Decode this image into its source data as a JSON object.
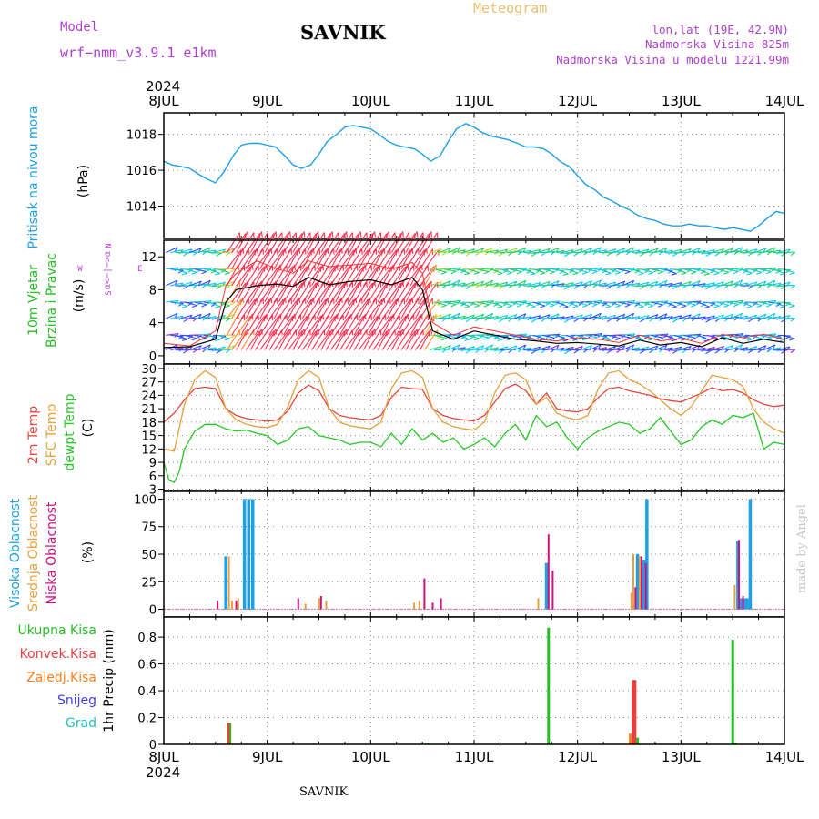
{
  "header": {
    "model_label": "Model",
    "model_name": "wrf−nmm_v3.9.1  e1km",
    "station": "SAVNIK",
    "product": "Meteogram",
    "lonlat": "lon,lat (19E, 42.9N)",
    "elevation": "Nadmorska Visina 825m",
    "model_elevation": "Nadmorska Visina u modelu 1221.99m",
    "year_top": "2024",
    "year_bottom": "2024",
    "footer_station": "SAVNIK",
    "credit": "made by Angel"
  },
  "colors": {
    "pressure": "#1ea0e6",
    "temp2m": "#e6453c",
    "sfc": "#e6a03c",
    "dewpt": "#28c828",
    "wind_black": "#000000",
    "wind_red": "#ff3232",
    "wind_label": "#22c022",
    "compass": "#c040e0",
    "high_cloud": "#1ea0e6",
    "mid_cloud": "#e6a03c",
    "low_cloud": "#d01080",
    "total_precip": "#22c022",
    "conv_precip": "#e64040",
    "frozen_precip": "#ff8020",
    "snow": "#4040e0",
    "hail": "#20c0c0",
    "header_purple": "#b040d0",
    "header_gold": "#e6c070"
  },
  "compass": {
    "n": "N",
    "e": "E",
    "w": "W",
    "s": "S",
    "glyph": "α<−|−>α"
  },
  "chart_data": [
    {
      "type": "line",
      "panel": "pressure",
      "ylabel_lines": [
        "Pritisak na nivou mora",
        "(hPa)"
      ],
      "xticks": [
        "8JUL",
        "9JUL",
        "10JUL",
        "11JUL",
        "12JUL",
        "13JUL",
        "14JUL"
      ],
      "yticks": [
        1014,
        1016,
        1018
      ],
      "ylim": [
        1012.2,
        1019.2
      ],
      "grid": true,
      "series": [
        {
          "color_key": "pressure",
          "x": [
            0,
            0.08,
            0.17,
            0.25,
            0.33,
            0.42,
            0.5,
            0.58,
            0.67,
            0.75,
            0.83,
            0.92,
            1.0,
            1.08,
            1.17,
            1.25,
            1.33,
            1.42,
            1.5,
            1.58,
            1.67,
            1.75,
            1.83,
            1.92,
            2.0,
            2.08,
            2.17,
            2.25,
            2.33,
            2.42,
            2.5,
            2.58,
            2.67,
            2.75,
            2.83,
            2.92,
            3.0,
            3.08,
            3.17,
            3.25,
            3.33,
            3.42,
            3.5,
            3.58,
            3.67,
            3.75,
            3.83,
            3.92,
            4.0,
            4.08,
            4.17,
            4.25,
            4.33,
            4.42,
            4.5,
            4.58,
            4.67,
            4.75,
            4.83,
            4.92,
            5.0,
            5.08,
            5.17,
            5.25,
            5.33,
            5.42,
            5.5,
            5.58,
            5.67,
            5.75,
            5.83,
            5.92,
            6.0
          ],
          "y": [
            1016.5,
            1016.3,
            1016.2,
            1016.1,
            1015.8,
            1015.5,
            1015.3,
            1015.9,
            1016.8,
            1017.4,
            1017.5,
            1017.5,
            1017.4,
            1017.3,
            1016.8,
            1016.3,
            1016.1,
            1016.3,
            1016.9,
            1017.6,
            1018.0,
            1018.4,
            1018.5,
            1018.4,
            1018.3,
            1018.0,
            1017.6,
            1017.4,
            1017.3,
            1017.2,
            1016.9,
            1016.5,
            1016.8,
            1017.6,
            1018.3,
            1018.6,
            1018.4,
            1018.1,
            1017.9,
            1017.8,
            1017.7,
            1017.5,
            1017.3,
            1017.3,
            1017.2,
            1016.9,
            1016.5,
            1016.2,
            1015.7,
            1015.2,
            1014.9,
            1014.5,
            1014.3,
            1014.0,
            1013.8,
            1013.5,
            1013.3,
            1013.2,
            1013.0,
            1012.9,
            1012.9,
            1013.0,
            1012.9,
            1012.9,
            1012.8,
            1012.7,
            1012.8,
            1012.7,
            1012.6,
            1012.9,
            1013.3,
            1013.7,
            1013.6
          ]
        }
      ]
    },
    {
      "type": "line",
      "panel": "wind",
      "ylabel_lines": [
        "10m Vjetar",
        "Brzina i Pravac",
        "(m/s)"
      ],
      "yticks": [
        0,
        4,
        8,
        12
      ],
      "ylim": [
        -1,
        14
      ],
      "grid": false,
      "series": [
        {
          "name": "",
          "color_key": "wind_black",
          "x": [
            0,
            0.25,
            0.5,
            0.6,
            0.7,
            0.9,
            1.1,
            1.25,
            1.4,
            1.6,
            1.8,
            2.0,
            2.2,
            2.4,
            2.5,
            2.6,
            2.8,
            3.0,
            3.2,
            3.4,
            3.6,
            3.8,
            4.0,
            4.2,
            4.4,
            4.6,
            4.8,
            5.0,
            5.2,
            5.4,
            5.6,
            5.8,
            6.0
          ],
          "y": [
            1.0,
            1.1,
            2.0,
            6.5,
            8.0,
            8.5,
            8.7,
            8.4,
            9.5,
            8.6,
            9.0,
            9.2,
            8.6,
            9.5,
            8.0,
            3.0,
            2.0,
            3.0,
            2.5,
            2.0,
            1.8,
            1.5,
            1.6,
            1.4,
            1.2,
            1.9,
            1.3,
            1.6,
            1.1,
            2.2,
            1.5,
            2.0,
            1.6
          ]
        },
        {
          "name": "",
          "color_key": "wind_red",
          "x": [
            0,
            0.25,
            0.5,
            0.6,
            0.7,
            0.9,
            1.1,
            1.25,
            1.4,
            1.6,
            1.8,
            2.0,
            2.2,
            2.4,
            2.5,
            2.6,
            2.8,
            3.0,
            3.2,
            3.4,
            3.6,
            3.8,
            4.0,
            4.2,
            4.4,
            4.6,
            4.8,
            5.0,
            5.2,
            5.4,
            5.6,
            5.8,
            6.0
          ],
          "y": [
            1.5,
            1.2,
            3.0,
            8.5,
            10.0,
            11.5,
            10.5,
            10.0,
            11.5,
            10.8,
            11.0,
            11.2,
            10.5,
            11.3,
            10.0,
            4.0,
            2.5,
            3.5,
            3.0,
            2.5,
            2.0,
            1.8,
            2.2,
            2.0,
            1.6,
            2.5,
            1.8,
            2.1,
            1.5,
            2.6,
            2.2,
            2.6,
            2.0
          ]
        }
      ]
    },
    {
      "type": "line",
      "panel": "temperature",
      "ylabel_lines": [
        "2m Temp",
        "SFC Temp",
        "dewpt Temp",
        "(C)"
      ],
      "yticks": [
        3,
        6,
        9,
        12,
        15,
        18,
        21,
        24,
        27,
        30
      ],
      "ylim": [
        2.5,
        31
      ],
      "grid": true,
      "series": [
        {
          "color_key": "temp2m",
          "x": [
            0,
            0.1,
            0.2,
            0.3,
            0.4,
            0.5,
            0.6,
            0.7,
            0.8,
            0.9,
            1.0,
            1.1,
            1.2,
            1.3,
            1.4,
            1.5,
            1.6,
            1.7,
            1.8,
            1.9,
            2.0,
            2.1,
            2.2,
            2.3,
            2.4,
            2.5,
            2.6,
            2.7,
            2.8,
            2.9,
            3.0,
            3.1,
            3.2,
            3.3,
            3.4,
            3.5,
            3.6,
            3.7,
            3.8,
            3.9,
            4.0,
            4.1,
            4.2,
            4.3,
            4.4,
            4.5,
            4.6,
            4.7,
            4.8,
            4.9,
            5.0,
            5.1,
            5.2,
            5.3,
            5.4,
            5.5,
            5.6,
            5.7,
            5.8,
            5.9,
            6.0
          ],
          "y": [
            18,
            20,
            23,
            25.5,
            25.8,
            25.5,
            21,
            19.5,
            18.8,
            18.5,
            18.2,
            18.5,
            20.5,
            24.5,
            26.3,
            25.0,
            21,
            19.5,
            19.0,
            18.7,
            18.5,
            19.5,
            23.5,
            25.8,
            25.5,
            25.3,
            21,
            19.5,
            18.8,
            18.5,
            18.3,
            19.5,
            22.5,
            25.5,
            26.5,
            25.0,
            22.0,
            24.5,
            21,
            20.5,
            20.3,
            21.0,
            23.5,
            25.5,
            25.8,
            25.0,
            24.5,
            24.0,
            23.2,
            22.8,
            22.5,
            23.5,
            24.5,
            25.7,
            25.0,
            25.3,
            24.5,
            23.0,
            22.0,
            21.5,
            21.8
          ]
        },
        {
          "color_key": "sfc",
          "x": [
            0,
            0.1,
            0.2,
            0.3,
            0.4,
            0.5,
            0.6,
            0.7,
            0.8,
            0.9,
            1.0,
            1.1,
            1.2,
            1.3,
            1.4,
            1.5,
            1.6,
            1.7,
            1.8,
            1.9,
            2.0,
            2.1,
            2.2,
            2.3,
            2.4,
            2.5,
            2.6,
            2.7,
            2.8,
            2.9,
            3.0,
            3.1,
            3.2,
            3.3,
            3.4,
            3.5,
            3.6,
            3.7,
            3.8,
            3.9,
            4.0,
            4.1,
            4.2,
            4.3,
            4.4,
            4.5,
            4.6,
            4.7,
            4.8,
            4.9,
            5.0,
            5.1,
            5.2,
            5.3,
            5.4,
            5.5,
            5.6,
            5.7,
            5.8,
            5.9,
            6.0
          ],
          "y": [
            12,
            11.5,
            22,
            27.5,
            29.5,
            28,
            21,
            18.5,
            17.5,
            17.0,
            16.8,
            17.5,
            21.5,
            27.5,
            29.5,
            28.0,
            21,
            18.0,
            17.2,
            16.8,
            16.5,
            18.0,
            25.5,
            29.0,
            29.5,
            28.0,
            21,
            18.0,
            17.0,
            16.5,
            16.2,
            18.0,
            24.5,
            28.5,
            29.0,
            27.5,
            22.0,
            23.5,
            20,
            19.0,
            18.5,
            19.5,
            25.5,
            29.0,
            29.5,
            27.5,
            26.5,
            25.0,
            23.0,
            21.0,
            19.5,
            21.5,
            25.0,
            28.5,
            28.0,
            27.5,
            26.0,
            21.0,
            18.0,
            16.5,
            15.5
          ]
        },
        {
          "color_key": "dewpt",
          "x": [
            0,
            0.05,
            0.1,
            0.15,
            0.2,
            0.3,
            0.4,
            0.5,
            0.6,
            0.7,
            0.8,
            0.9,
            1.0,
            1.1,
            1.2,
            1.3,
            1.4,
            1.5,
            1.6,
            1.7,
            1.8,
            1.9,
            2.0,
            2.1,
            2.2,
            2.3,
            2.4,
            2.5,
            2.6,
            2.7,
            2.8,
            2.9,
            3.0,
            3.1,
            3.2,
            3.3,
            3.4,
            3.5,
            3.6,
            3.7,
            3.8,
            3.9,
            4.0,
            4.1,
            4.2,
            4.3,
            4.4,
            4.5,
            4.6,
            4.7,
            4.8,
            4.9,
            5.0,
            5.1,
            5.2,
            5.3,
            5.4,
            5.5,
            5.6,
            5.7,
            5.8,
            5.9,
            6.0
          ],
          "y": [
            9,
            5,
            4.5,
            7,
            12,
            16,
            17.5,
            17.5,
            16.5,
            16.0,
            16.2,
            15.5,
            15.0,
            13.0,
            14.0,
            16.5,
            17.0,
            15.0,
            14.5,
            14.0,
            13.0,
            13.5,
            13.5,
            12.5,
            15.5,
            13.0,
            16.5,
            14.0,
            15.5,
            13.5,
            14.5,
            12.0,
            13.0,
            14.5,
            12.5,
            15.5,
            17.5,
            14.0,
            19.5,
            17.0,
            18.0,
            14.5,
            12.0,
            14.5,
            16.0,
            17.0,
            18.0,
            17.5,
            15.5,
            16.5,
            19.0,
            16.0,
            13.0,
            14.0,
            17.0,
            18.5,
            17.5,
            19.5,
            19.0,
            20.0,
            12.0,
            13.5,
            13.0
          ]
        }
      ]
    },
    {
      "type": "bar",
      "panel": "clouds",
      "ylabel_lines": [
        "Visoka Oblacnost",
        "Srednja Oblacnost",
        "Niska Oblacnost",
        "(%)"
      ],
      "yticks": [
        0,
        25,
        50,
        75,
        100
      ],
      "ylim": [
        -7,
        107
      ],
      "grid": true,
      "series": [
        {
          "color_key": "high_cloud",
          "x": [
            0.6,
            0.78,
            0.82,
            0.86,
            3.7,
            4.58,
            4.61,
            4.64,
            4.67,
            5.55,
            5.58,
            5.61,
            5.64,
            5.67
          ],
          "values": [
            48,
            100,
            100,
            100,
            42,
            50,
            48,
            45,
            100,
            62,
            10,
            10,
            10,
            100
          ]
        },
        {
          "color_key": "mid_cloud",
          "x": [
            0.63,
            0.66,
            0.72,
            1.37,
            1.5,
            1.57,
            2.42,
            2.47,
            2.52,
            3.62,
            4.52,
            4.54,
            4.6,
            5.52
          ],
          "values": [
            48,
            8,
            10,
            5,
            10,
            8,
            6,
            8,
            5,
            10,
            15,
            50,
            48,
            22
          ]
        },
        {
          "color_key": "low_cloud",
          "x": [
            0.52,
            0.7,
            1.3,
            1.52,
            2.52,
            2.6,
            2.68,
            3.72,
            3.76,
            4.56,
            4.62,
            4.66,
            5.56,
            5.6
          ],
          "values": [
            8,
            8,
            10,
            12,
            28,
            6,
            10,
            68,
            35,
            20,
            48,
            42,
            63,
            12
          ]
        }
      ]
    },
    {
      "type": "bar",
      "panel": "precip",
      "ylabel_lines": [
        "1hr Precip (mm)"
      ],
      "legend_entries": [
        "Ukupna Kisa",
        "Konvek.Kisa",
        "Zaledj.Kisa",
        "Snijeg",
        "Grad"
      ],
      "yticks": [
        0,
        0.2,
        0.4,
        0.6,
        0.8
      ],
      "ylim": [
        0,
        0.95
      ],
      "grid": true,
      "xticks": [
        "8JUL",
        "9JUL",
        "10JUL",
        "11JUL",
        "12JUL",
        "13JUL",
        "14JUL"
      ],
      "series": [
        {
          "color_key": "total_precip",
          "x": [
            0.62,
            0.64,
            2.55,
            3.72,
            4.52,
            4.55,
            4.58,
            5.5,
            5.53
          ],
          "values": [
            0.16,
            0.16,
            0.01,
            0.87,
            0.08,
            0.48,
            0.05,
            0.78,
            0.01
          ]
        },
        {
          "color_key": "conv_precip",
          "x": [
            0.625,
            4.535,
            4.555
          ],
          "values": [
            0.16,
            0.48,
            0.48
          ]
        },
        {
          "color_key": "frozen_precip",
          "x": [
            4.51
          ],
          "values": [
            0.08
          ]
        }
      ]
    }
  ]
}
